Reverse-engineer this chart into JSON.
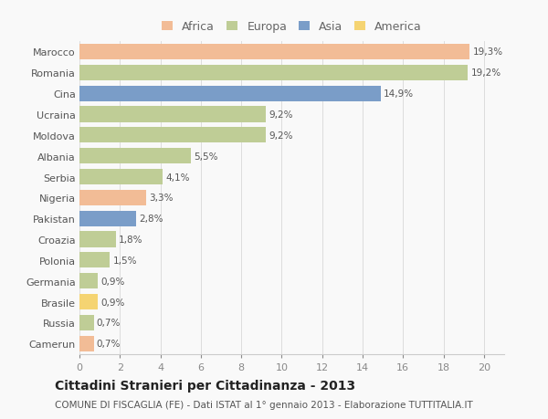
{
  "countries": [
    "Marocco",
    "Romania",
    "Cina",
    "Ucraina",
    "Moldova",
    "Albania",
    "Serbia",
    "Nigeria",
    "Pakistan",
    "Croazia",
    "Polonia",
    "Germania",
    "Brasile",
    "Russia",
    "Camerun"
  ],
  "values": [
    19.3,
    19.2,
    14.9,
    9.2,
    9.2,
    5.5,
    4.1,
    3.3,
    2.8,
    1.8,
    1.5,
    0.9,
    0.9,
    0.7,
    0.7
  ],
  "labels": [
    "19,3%",
    "19,2%",
    "14,9%",
    "9,2%",
    "9,2%",
    "5,5%",
    "4,1%",
    "3,3%",
    "2,8%",
    "1,8%",
    "1,5%",
    "0,9%",
    "0,9%",
    "0,7%",
    "0,7%"
  ],
  "colors": [
    "#f2bc96",
    "#bfcd96",
    "#7a9dc8",
    "#bfcd96",
    "#bfcd96",
    "#bfcd96",
    "#bfcd96",
    "#f2bc96",
    "#7a9dc8",
    "#bfcd96",
    "#bfcd96",
    "#bfcd96",
    "#f5d472",
    "#bfcd96",
    "#f2bc96"
  ],
  "legend_labels": [
    "Africa",
    "Europa",
    "Asia",
    "America"
  ],
  "legend_colors": [
    "#f2bc96",
    "#bfcd96",
    "#7a9dc8",
    "#f5d472"
  ],
  "title": "Cittadini Stranieri per Cittadinanza - 2013",
  "subtitle": "COMUNE DI FISCAGLIA (FE) - Dati ISTAT al 1° gennaio 2013 - Elaborazione TUTTITALIA.IT",
  "xlim": [
    0,
    21
  ],
  "xticks": [
    0,
    2,
    4,
    6,
    8,
    10,
    12,
    14,
    16,
    18,
    20
  ],
  "bg_color": "#f9f9f9",
  "grid_color": "#dddddd",
  "bar_height": 0.75,
  "title_fontsize": 10,
  "subtitle_fontsize": 7.5,
  "label_fontsize": 7.5,
  "tick_fontsize": 8,
  "legend_fontsize": 9
}
